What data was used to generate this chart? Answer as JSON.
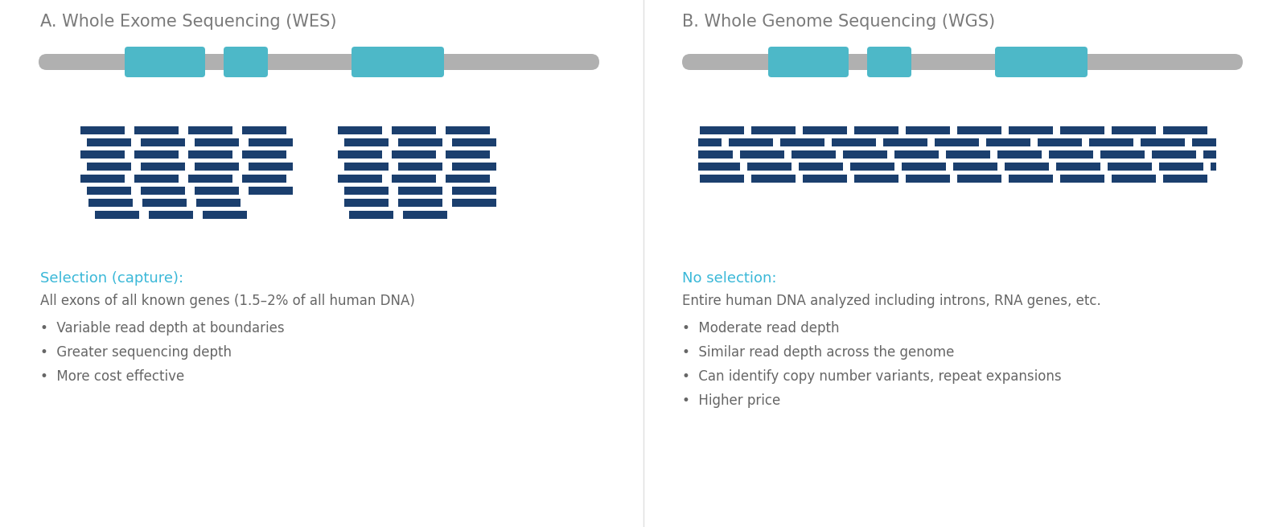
{
  "bg_color": "#ffffff",
  "title_color": "#7a7a7a",
  "teal_color": "#4db8c8",
  "navy_color": "#1b3f6e",
  "gray_color": "#b0b0b0",
  "cyan_label_color": "#3ab8d8",
  "text_color": "#666666",
  "panel_A_title": "A. Whole Exome Sequencing (WES)",
  "panel_B_title": "B. Whole Genome Sequencing (WGS)",
  "wes_label": "Selection (capture):",
  "wes_desc": "All exons of all known genes (1.5–2% of all human DNA)",
  "wes_bullets": [
    "Variable read depth at boundaries",
    "Greater sequencing depth",
    "More cost effective"
  ],
  "wgs_label": "No selection:",
  "wgs_desc": "Entire human DNA analyzed including introns, RNA genes, etc.",
  "wgs_bullets": [
    "Moderate read depth",
    "Similar read depth across the genome",
    "Can identify copy number variants, repeat expansions",
    "Higher price"
  ]
}
